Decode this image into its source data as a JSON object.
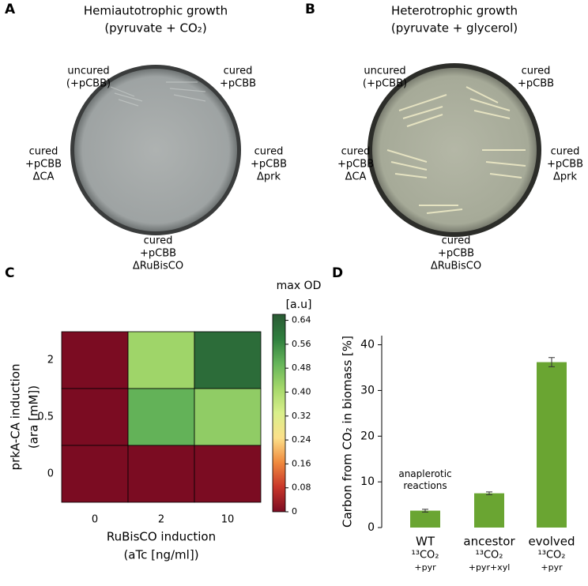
{
  "panels": [
    {
      "label": "A",
      "title": [
        "Hemiautotrophic growth",
        "(pyruvate + CO₂)"
      ],
      "strains": [
        [
          "uncured",
          "(+pCBB)"
        ],
        [
          "cured",
          "+pCBB"
        ],
        [
          "cured",
          "+pCBB",
          "ΔCA"
        ],
        [
          "cured",
          "+pCBB",
          "Δprk"
        ],
        [
          "cured",
          "+pCBB",
          "ΔRuBisCO"
        ]
      ]
    },
    {
      "label": "B",
      "title": [
        "Heterotrophic growth",
        "(pyruvate + glycerol)"
      ],
      "strains": [
        [
          "uncured",
          "(+pCBB)"
        ],
        [
          "cured",
          "+pCBB"
        ],
        [
          "cured",
          "+pCBB",
          "ΔCA"
        ],
        [
          "cured",
          "+pCBB",
          "Δprk"
        ],
        [
          "cured",
          "+pCBB",
          "ΔRuBisCO"
        ]
      ]
    },
    {
      "label": "C"
    },
    {
      "label": "D"
    }
  ],
  "chart_data": [
    {
      "type": "heatmap",
      "x_label": [
        "RuBisCO induction",
        "(aTc [ng/ml])"
      ],
      "y_label": [
        "prkA-CA induction",
        "(ara [mM])"
      ],
      "x_categories": [
        "0",
        "2",
        "10"
      ],
      "y_categories": [
        "2",
        "0.5",
        "0"
      ],
      "values": [
        [
          0,
          0.42,
          0.62
        ],
        [
          0,
          0.5,
          0.44
        ],
        [
          0,
          0,
          0
        ]
      ],
      "colorbar_title": [
        "max OD",
        "[a.u]"
      ],
      "zlim": [
        0,
        0.66
      ],
      "zticks": [
        0,
        0.08,
        0.16,
        0.24,
        0.32,
        {
          "value": 0.4,
          "label": "0.40"
        },
        0.48,
        0.56,
        0.64
      ],
      "colormap": [
        "#7b0c22",
        "#c8362a",
        "#f08a3e",
        "#fce08a",
        "#d9ef8b",
        "#a5d86a",
        "#66b55a",
        "#2f7f3e",
        "#2a5a34"
      ]
    },
    {
      "type": "bar",
      "y_label": "Carbon from CO₂ in biomass [%]",
      "categories": [
        "WT",
        "ancestor",
        "evolved"
      ],
      "conditions": [
        [
          "¹³CO₂",
          "+pyr"
        ],
        [
          "¹³CO₂",
          "+pyr+xyl"
        ],
        [
          "¹³CO₂",
          "+pyr"
        ]
      ],
      "values": [
        3.7,
        7.5,
        36.2
      ],
      "errors": [
        0.3,
        0.3,
        1.0
      ],
      "annotation": [
        "anaplerotic",
        "reactions"
      ],
      "color": "#6aa532",
      "condition_color": "#4f8c1e",
      "ylim": [
        0,
        42
      ],
      "yticks": [
        0,
        10,
        20,
        30,
        40
      ]
    }
  ]
}
